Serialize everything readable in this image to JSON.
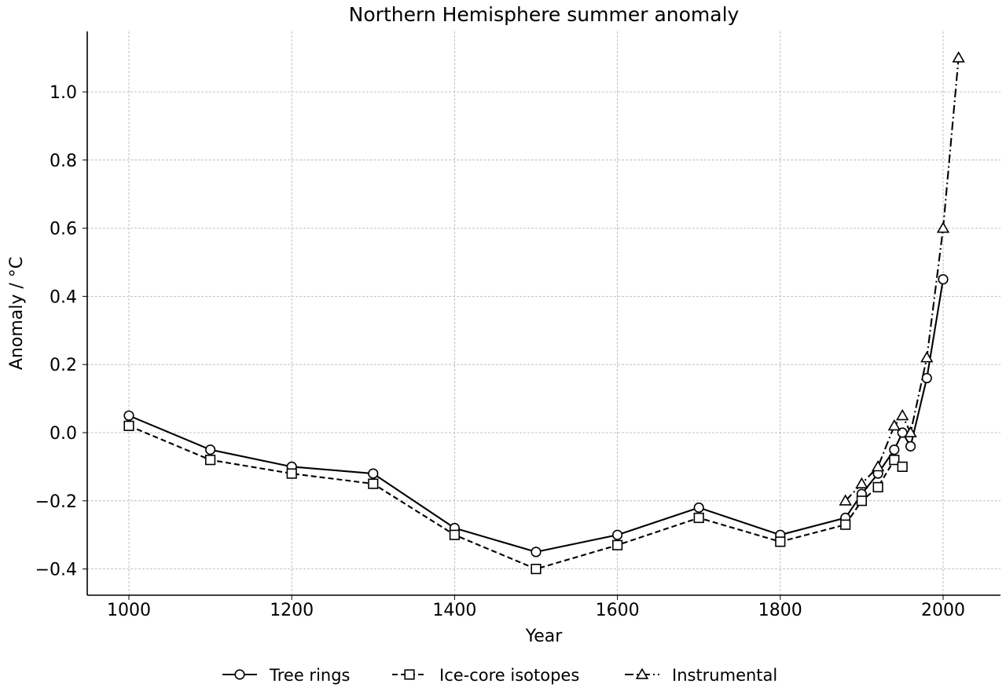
{
  "chart_data": {
    "type": "line",
    "title": "Northern Hemisphere summer anomaly",
    "xlabel": "Year",
    "ylabel": "Anomaly / $^\\circ$C",
    "ylabel_display": "Anomaly / °C",
    "xlim": [
      950,
      2070
    ],
    "ylim": [
      -0.475,
      1.175
    ],
    "x_ticks": [
      1000,
      1200,
      1400,
      1600,
      1800,
      2000
    ],
    "y_ticks": [
      -0.4,
      -0.2,
      0.0,
      0.2,
      0.4,
      0.6,
      0.8,
      1.0
    ],
    "x_tick_labels": [
      "1000",
      "1200",
      "1400",
      "1600",
      "1800",
      "2000"
    ],
    "y_tick_labels": [
      "−0.4",
      "−0.2",
      "0.0",
      "0.2",
      "0.4",
      "0.6",
      "0.8",
      "1.0"
    ],
    "grid": true,
    "legend_position": "bottom-center",
    "series": [
      {
        "name": "Tree rings",
        "marker": "circle",
        "linestyle": "solid",
        "x": [
          1000,
          1100,
          1200,
          1300,
          1400,
          1500,
          1600,
          1700,
          1800,
          1880,
          1900,
          1920,
          1940,
          1950,
          1960,
          1980,
          2000
        ],
        "y": [
          0.05,
          -0.05,
          -0.1,
          -0.12,
          -0.28,
          -0.35,
          -0.3,
          -0.22,
          -0.3,
          -0.25,
          -0.18,
          -0.12,
          -0.05,
          0.0,
          -0.04,
          0.16,
          0.45
        ]
      },
      {
        "name": "Ice-core isotopes",
        "marker": "square",
        "linestyle": "dashed",
        "x": [
          1000,
          1100,
          1200,
          1300,
          1400,
          1500,
          1600,
          1700,
          1800,
          1880,
          1900,
          1920,
          1940,
          1950
        ],
        "y": [
          0.02,
          -0.08,
          -0.12,
          -0.15,
          -0.3,
          -0.4,
          -0.33,
          -0.25,
          -0.32,
          -0.27,
          -0.2,
          -0.16,
          -0.08,
          -0.1
        ]
      },
      {
        "name": "Instrumental",
        "marker": "triangle",
        "linestyle": "dashdot",
        "x": [
          1880,
          1900,
          1920,
          1940,
          1950,
          1960,
          1980,
          2000,
          2019
        ],
        "y": [
          -0.2,
          -0.15,
          -0.1,
          0.02,
          0.05,
          0.0,
          0.22,
          0.6,
          1.1
        ]
      }
    ],
    "colors": {
      "line": "#000000",
      "marker_fill": "#ffffff",
      "grid": "#b0b0b0"
    }
  }
}
